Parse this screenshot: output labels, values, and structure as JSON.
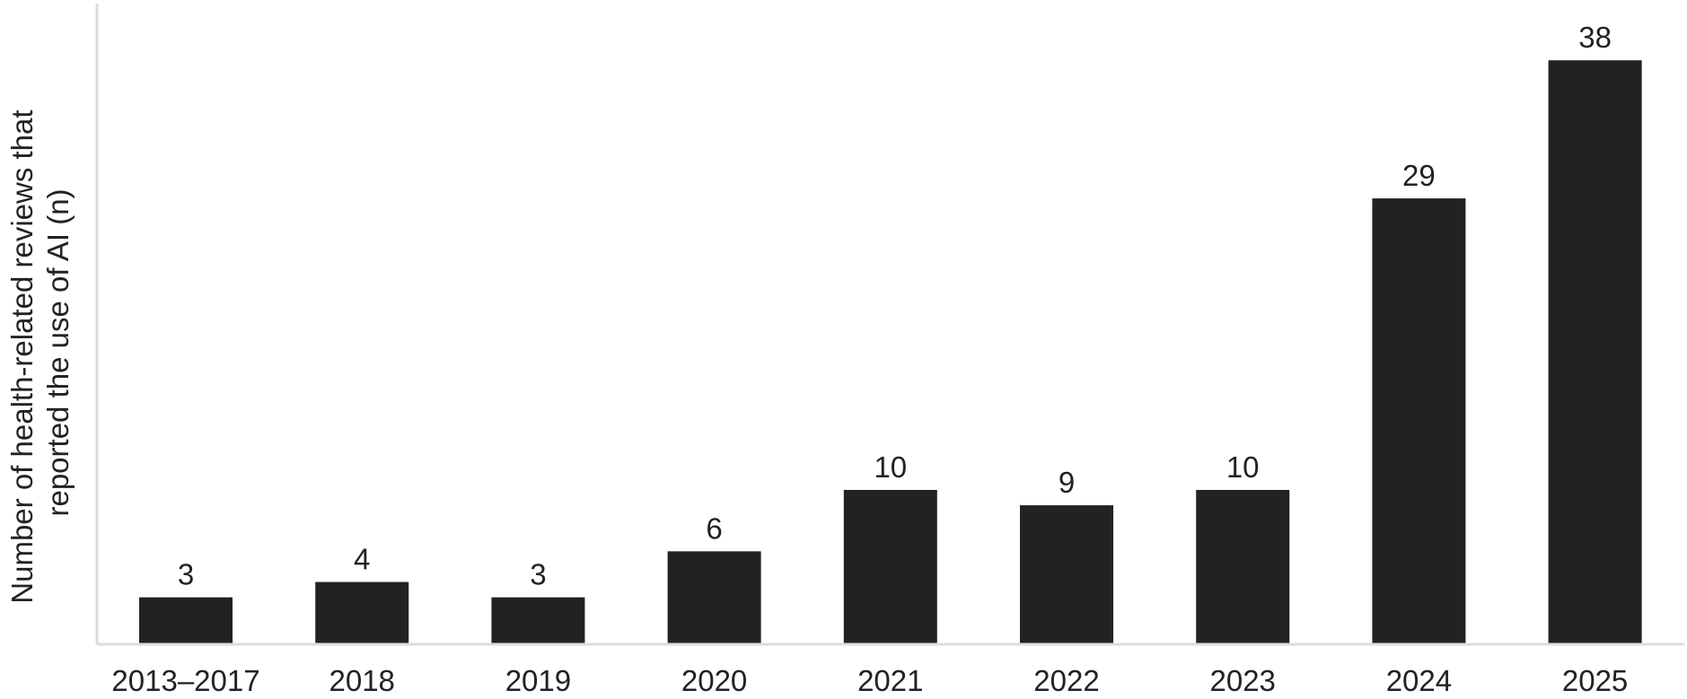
{
  "chart_data": {
    "type": "bar",
    "categories": [
      "2013–2017",
      "2018",
      "2019",
      "2020",
      "2021",
      "2022",
      "2023",
      "2024",
      "2025"
    ],
    "values": [
      3,
      4,
      3,
      6,
      10,
      9,
      10,
      29,
      38
    ],
    "data_labels": [
      "3",
      "4",
      "3",
      "6",
      "10",
      "9",
      "10",
      "29",
      "38"
    ],
    "title": "",
    "xlabel": "",
    "ylabel_lines": [
      "Number of health-related reviews that",
      "reported the use of AI (n)"
    ],
    "ylim": [
      0,
      41
    ],
    "grid": false,
    "legend": "none",
    "bar_color": "#222222",
    "axis_color": "#dcdcdc"
  }
}
